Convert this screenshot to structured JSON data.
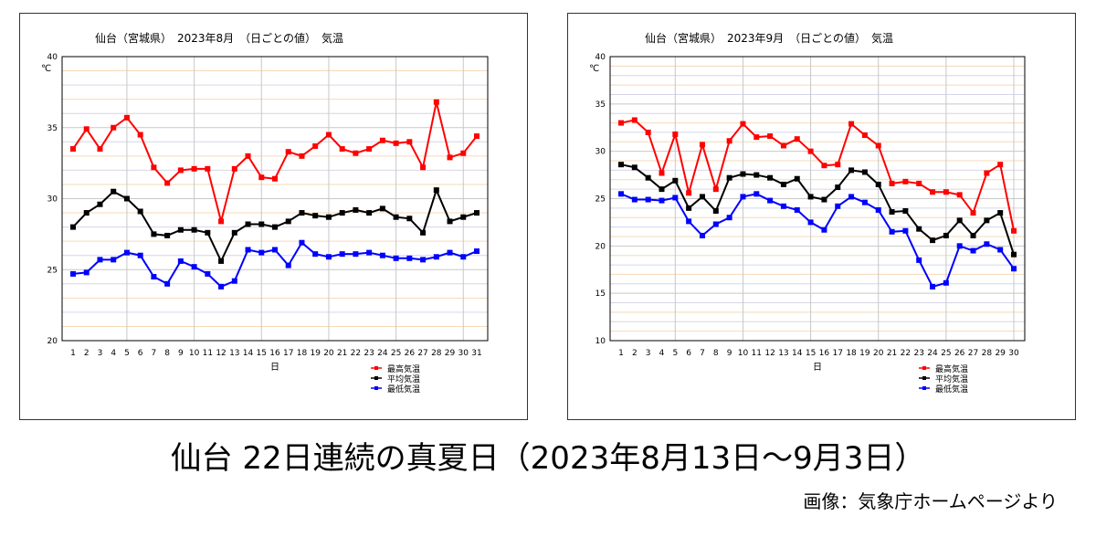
{
  "caption": "仙台 22日連続の真夏日（2023年8月13日〜9月3日）",
  "credit": "画像：気象庁ホームページより",
  "colors": {
    "max": "#ff0000",
    "avg": "#000000",
    "min": "#0000ff",
    "grid_alt": "#f6d9b8",
    "grid_major": "#c8c8c8"
  },
  "chart_data": [
    {
      "type": "line",
      "title": "仙台（宮城県）　2023年8月　（日ごとの値）　気温",
      "ylabel": "℃",
      "xlabel": "日",
      "ylim": [
        20,
        40
      ],
      "yticks": [
        "20",
        "25",
        "30",
        "35",
        "40"
      ],
      "x": [
        "1",
        "2",
        "3",
        "4",
        "5",
        "6",
        "7",
        "8",
        "9",
        "10",
        "11",
        "12",
        "13",
        "14",
        "15",
        "16",
        "17",
        "18",
        "19",
        "20",
        "21",
        "22",
        "23",
        "24",
        "25",
        "26",
        "27",
        "28",
        "29",
        "30",
        "31"
      ],
      "series": [
        {
          "name": "最高気温",
          "values": [
            33.5,
            34.9,
            33.5,
            35.0,
            35.7,
            34.5,
            32.2,
            31.1,
            32.0,
            32.1,
            32.1,
            28.4,
            32.1,
            33.0,
            31.5,
            31.4,
            33.3,
            33.0,
            33.7,
            34.5,
            33.5,
            33.2,
            33.5,
            34.1,
            33.9,
            34.0,
            32.2,
            36.8,
            32.9,
            33.2,
            34.4
          ]
        },
        {
          "name": "平均気温",
          "values": [
            28.0,
            29.0,
            29.6,
            30.5,
            30.0,
            29.1,
            27.5,
            27.4,
            27.8,
            27.8,
            27.6,
            25.6,
            27.6,
            28.2,
            28.2,
            28.0,
            28.4,
            29.0,
            28.8,
            28.7,
            29.0,
            29.2,
            29.0,
            29.3,
            28.7,
            28.6,
            27.6,
            30.6,
            28.4,
            28.7,
            29.0
          ]
        },
        {
          "name": "最低気温",
          "values": [
            24.7,
            24.8,
            25.7,
            25.7,
            26.2,
            26.0,
            24.5,
            24.0,
            25.6,
            25.2,
            24.7,
            23.8,
            24.2,
            26.4,
            26.2,
            26.4,
            25.3,
            26.9,
            26.1,
            25.9,
            26.1,
            26.1,
            26.2,
            26.0,
            25.8,
            25.8,
            25.7,
            25.9,
            26.2,
            25.9,
            26.3
          ]
        }
      ]
    },
    {
      "type": "line",
      "title": "仙台（宮城県）　2023年9月　（日ごとの値）　気温",
      "ylabel": "℃",
      "xlabel": "日",
      "ylim": [
        10,
        40
      ],
      "yticks": [
        "10",
        "15",
        "20",
        "25",
        "30",
        "35",
        "40"
      ],
      "x": [
        "1",
        "2",
        "3",
        "4",
        "5",
        "6",
        "7",
        "8",
        "9",
        "10",
        "11",
        "12",
        "13",
        "14",
        "15",
        "16",
        "17",
        "18",
        "19",
        "20",
        "21",
        "22",
        "23",
        "24",
        "25",
        "26",
        "27",
        "28",
        "29",
        "30"
      ],
      "series": [
        {
          "name": "最高気温",
          "values": [
            33.0,
            33.3,
            32.0,
            27.7,
            31.8,
            25.6,
            30.7,
            26.0,
            31.1,
            32.9,
            31.5,
            31.6,
            30.6,
            31.3,
            30.0,
            28.5,
            28.6,
            32.9,
            31.7,
            30.6,
            26.6,
            26.8,
            26.6,
            25.7,
            25.7,
            25.4,
            23.5,
            27.7,
            28.6,
            21.6
          ]
        },
        {
          "name": "平均気温",
          "values": [
            28.6,
            28.3,
            27.2,
            26.0,
            26.9,
            24.0,
            25.2,
            23.7,
            27.2,
            27.6,
            27.5,
            27.2,
            26.5,
            27.1,
            25.2,
            24.9,
            26.2,
            28.0,
            27.8,
            26.5,
            23.6,
            23.7,
            21.8,
            20.6,
            21.1,
            22.7,
            21.1,
            22.7,
            23.5,
            19.1
          ]
        },
        {
          "name": "最低気温",
          "values": [
            25.5,
            24.9,
            24.9,
            24.8,
            25.1,
            22.6,
            21.1,
            22.3,
            23.0,
            25.2,
            25.5,
            24.8,
            24.2,
            23.8,
            22.5,
            21.7,
            24.2,
            25.2,
            24.6,
            23.8,
            21.5,
            21.6,
            18.5,
            15.7,
            16.1,
            20.0,
            19.5,
            20.2,
            19.6,
            17.6
          ]
        }
      ]
    }
  ]
}
